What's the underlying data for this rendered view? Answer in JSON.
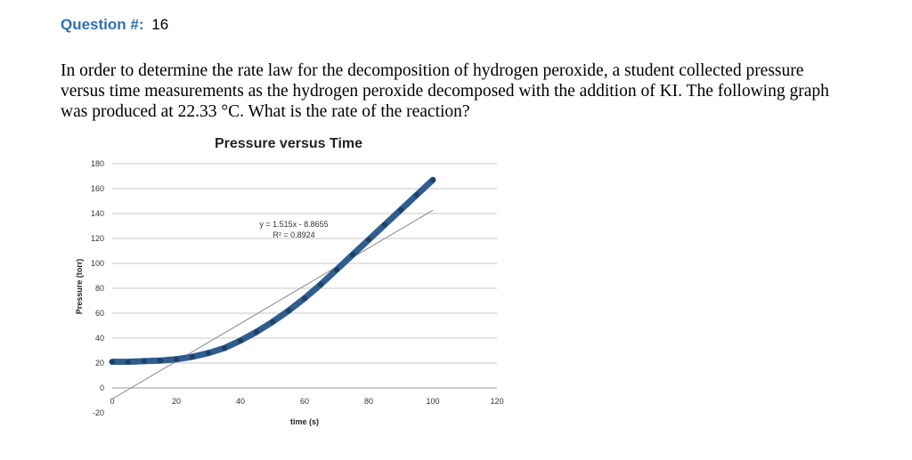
{
  "question": {
    "label": "Question #:",
    "number": "16",
    "text": "In order to determine the rate law for the decomposition of hydrogen peroxide, a student collected pressure versus time measurements as the hydrogen peroxide decomposed with the addition of KI. The following graph was produced at 22.33 °C. What is the rate of the reaction?"
  },
  "chart_data": {
    "type": "scatter",
    "title": "Pressure versus Time",
    "xlabel": "time (s)",
    "ylabel": "Pressure (torr)",
    "xlim": [
      0,
      120
    ],
    "ylim": [
      -20,
      180
    ],
    "x_ticks": [
      0,
      20,
      40,
      60,
      80,
      100,
      120
    ],
    "x_tick_labels": [
      "0",
      "20",
      "40",
      "60",
      "80",
      "100",
      "120"
    ],
    "y_ticks": [
      -20,
      0,
      20,
      40,
      60,
      80,
      100,
      120,
      140,
      160,
      180
    ],
    "y_tick_labels": [
      "-20",
      "0",
      "20",
      "40",
      "60",
      "80",
      "100",
      "120",
      "140",
      "160",
      "180"
    ],
    "grid": "horizontal",
    "series": [
      {
        "x": [
          0,
          5,
          10,
          15,
          20,
          25,
          30,
          35,
          40,
          45,
          50,
          55,
          60,
          65,
          70,
          75,
          80,
          85,
          90,
          95,
          100
        ],
        "y": [
          21,
          21,
          21.5,
          22,
          23,
          25,
          28,
          32,
          38,
          45,
          53,
          62,
          72,
          83,
          95,
          107,
          119,
          131,
          143,
          155,
          167
        ],
        "color": "#2f5d8f"
      }
    ],
    "trendline": {
      "slope": 1.515,
      "intercept": -8.8655,
      "x_range": [
        0,
        100
      ],
      "equation": "y = 1.515x - 8.8655",
      "r2": "R² = 0.8924",
      "color": "#888888"
    }
  }
}
